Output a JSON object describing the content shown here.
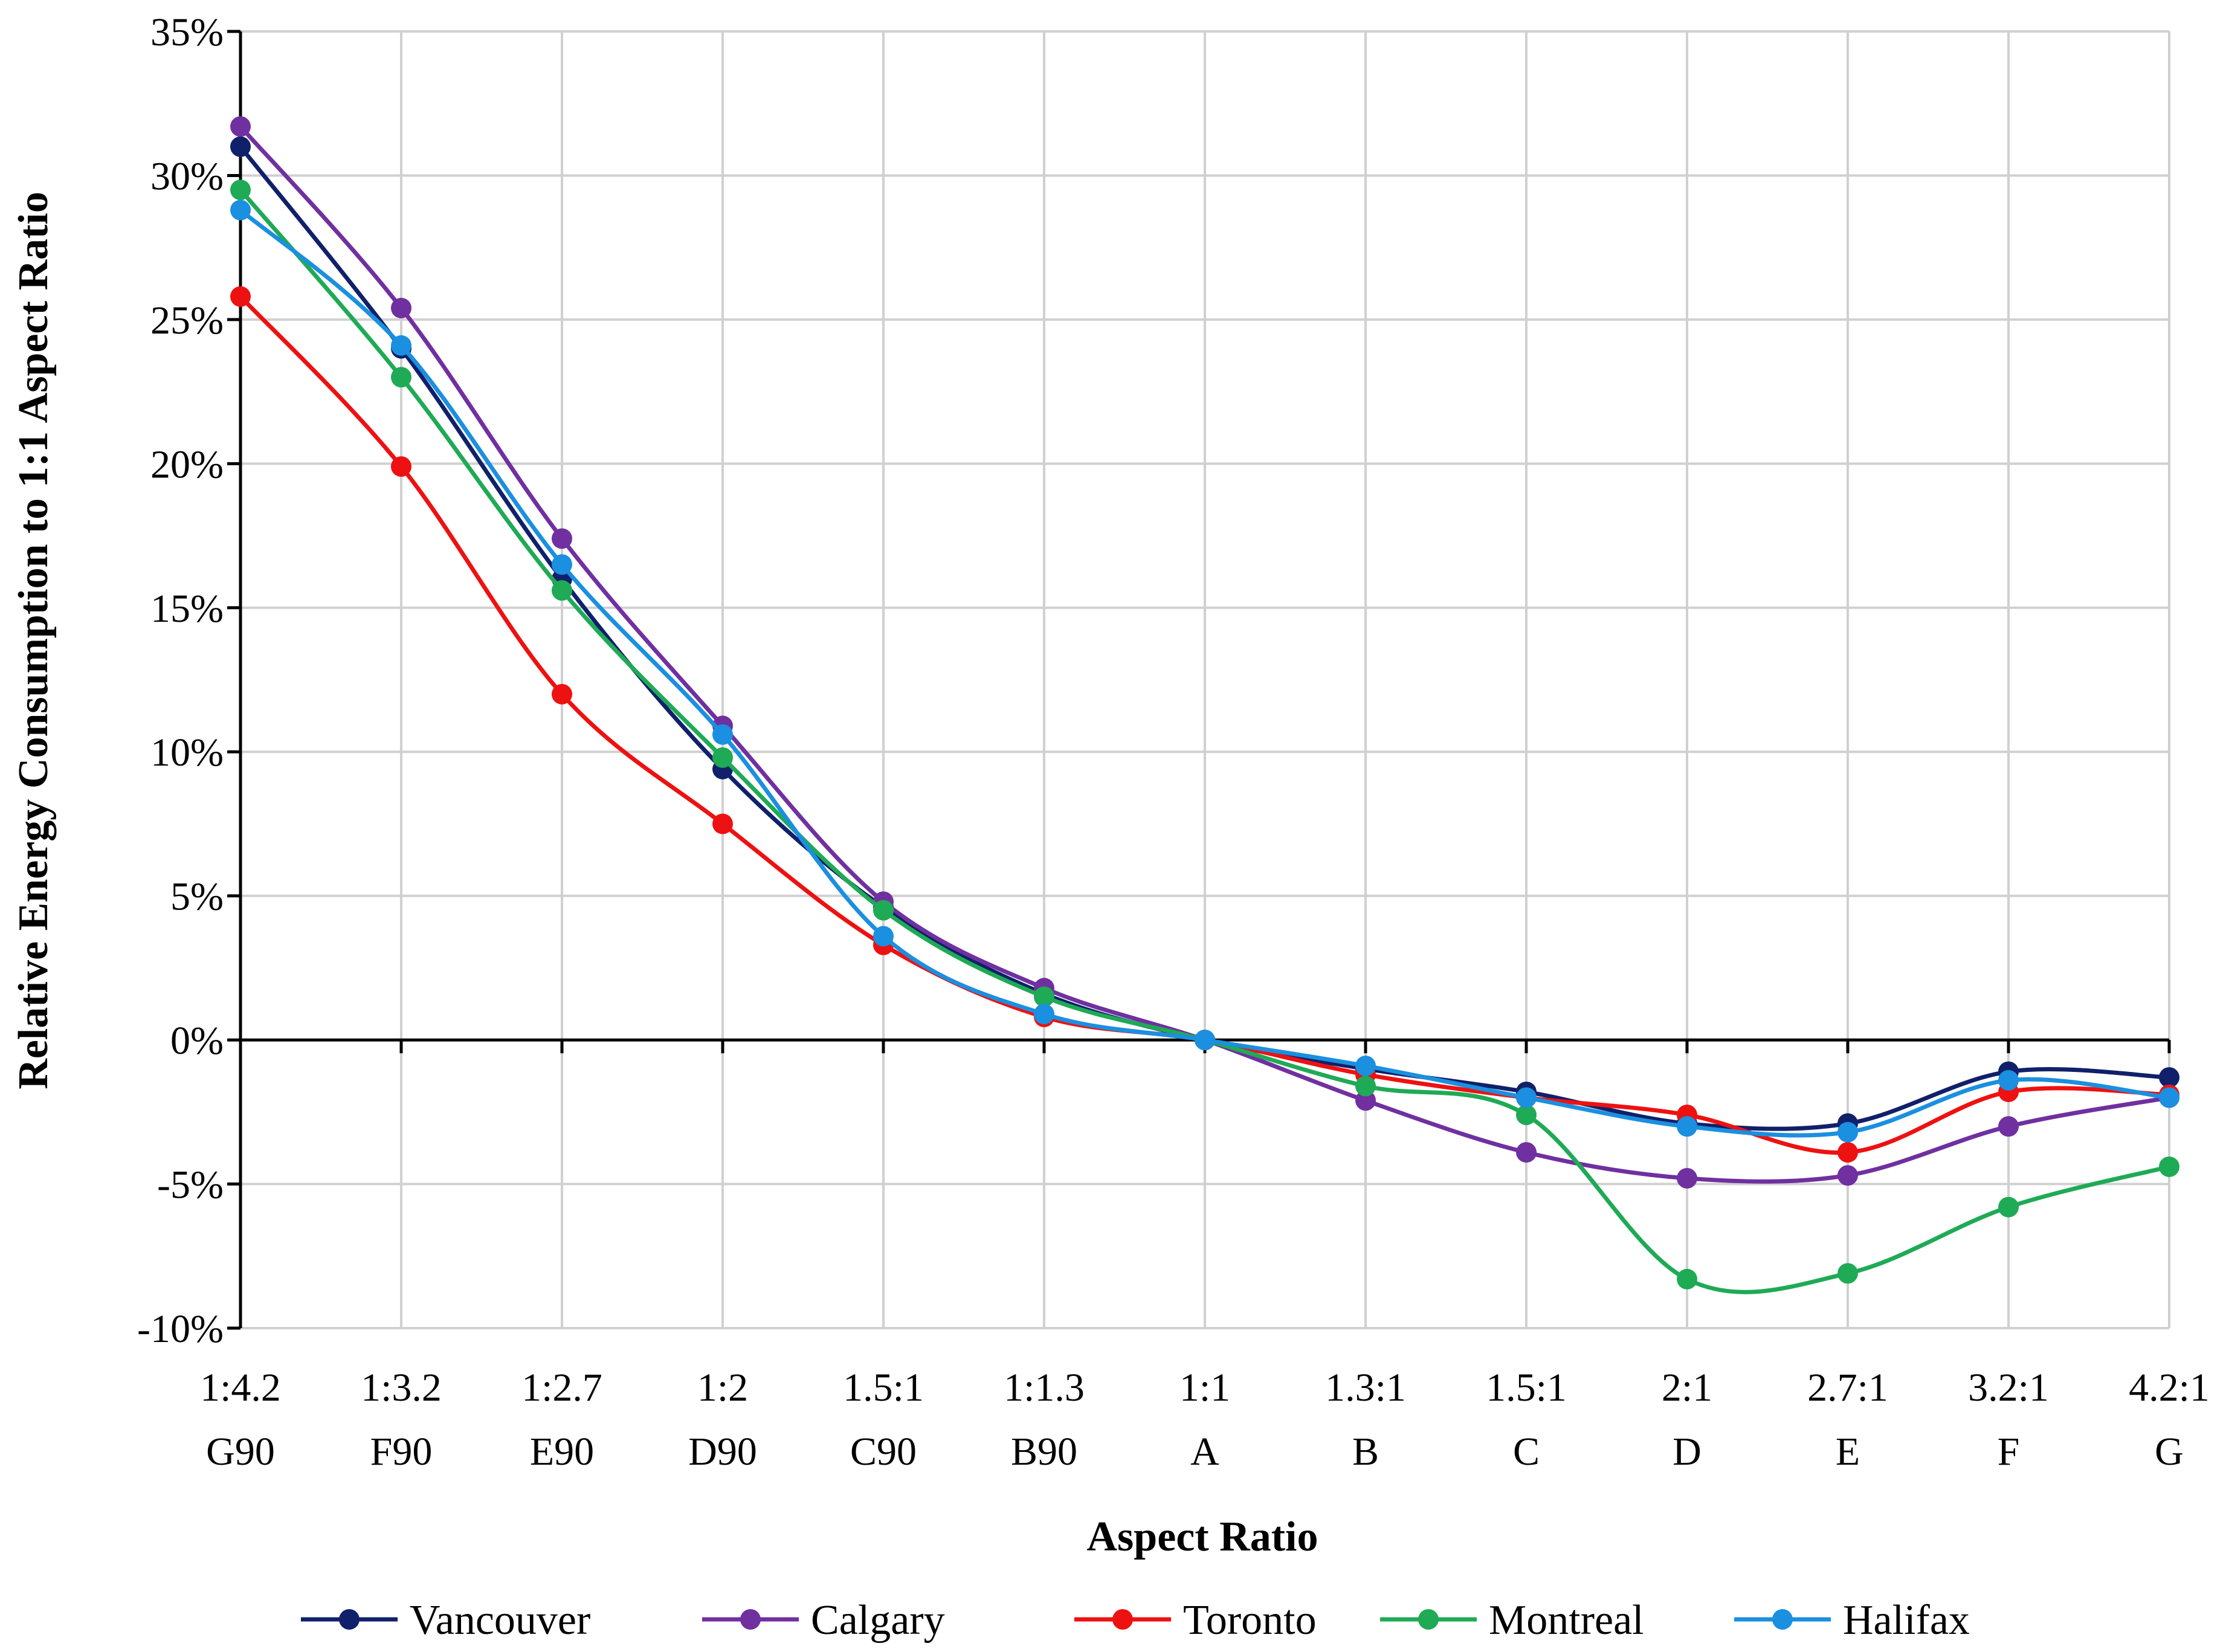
{
  "chart_data": {
    "type": "line",
    "title": "",
    "xlabel": "Aspect Ratio",
    "ylabel": "Relative Energy Consumption to 1:1 Aspect Ratio",
    "ylim": [
      -10,
      35
    ],
    "ytick_step": 5,
    "ytick_labels": [
      "-10%",
      "-5%",
      "0%",
      "5%",
      "10%",
      "15%",
      "20%",
      "25%",
      "30%",
      "35%"
    ],
    "grid": true,
    "legend_position": "bottom",
    "categories": [
      {
        "ratio": "1:4.2",
        "code": "G90"
      },
      {
        "ratio": "1:3.2",
        "code": "F90"
      },
      {
        "ratio": "1:2.7",
        "code": "E90"
      },
      {
        "ratio": "1:2",
        "code": "D90"
      },
      {
        "ratio": "1.5:1",
        "code": "C90"
      },
      {
        "ratio": "1:1.3",
        "code": "B90"
      },
      {
        "ratio": "1:1",
        "code": "A"
      },
      {
        "ratio": "1.3:1",
        "code": "B"
      },
      {
        "ratio": "1.5:1",
        "code": "C"
      },
      {
        "ratio": "2:1",
        "code": "D"
      },
      {
        "ratio": "2.7:1",
        "code": "E"
      },
      {
        "ratio": "3.2:1",
        "code": "F"
      },
      {
        "ratio": "4.2:1",
        "code": "G"
      }
    ],
    "series": [
      {
        "name": "Vancouver",
        "color": "#10206a",
        "values": [
          31.0,
          24.0,
          16.0,
          9.4,
          4.6,
          1.6,
          0.0,
          -1.0,
          -1.8,
          -2.9,
          -2.9,
          -1.1,
          -1.3
        ]
      },
      {
        "name": "Calgary",
        "color": "#7030a0",
        "values": [
          31.7,
          25.4,
          17.4,
          10.9,
          4.8,
          1.8,
          0.0,
          -2.1,
          -3.9,
          -4.8,
          -4.7,
          -3.0,
          -2.0
        ]
      },
      {
        "name": "Toronto",
        "color": "#ee1111",
        "values": [
          25.8,
          19.9,
          12.0,
          7.5,
          3.3,
          0.8,
          0.0,
          -1.2,
          -2.0,
          -2.6,
          -3.9,
          -1.8,
          -1.9
        ]
      },
      {
        "name": "Montreal",
        "color": "#1faa55",
        "values": [
          29.5,
          23.0,
          15.6,
          9.8,
          4.5,
          1.5,
          0.0,
          -1.6,
          -2.6,
          -8.3,
          -8.1,
          -5.8,
          -4.4
        ]
      },
      {
        "name": "Halifax",
        "color": "#1b8fe0",
        "values": [
          28.8,
          24.1,
          16.5,
          10.6,
          3.6,
          0.9,
          0.0,
          -0.9,
          -2.0,
          -3.0,
          -3.2,
          -1.4,
          -2.0
        ]
      }
    ]
  }
}
